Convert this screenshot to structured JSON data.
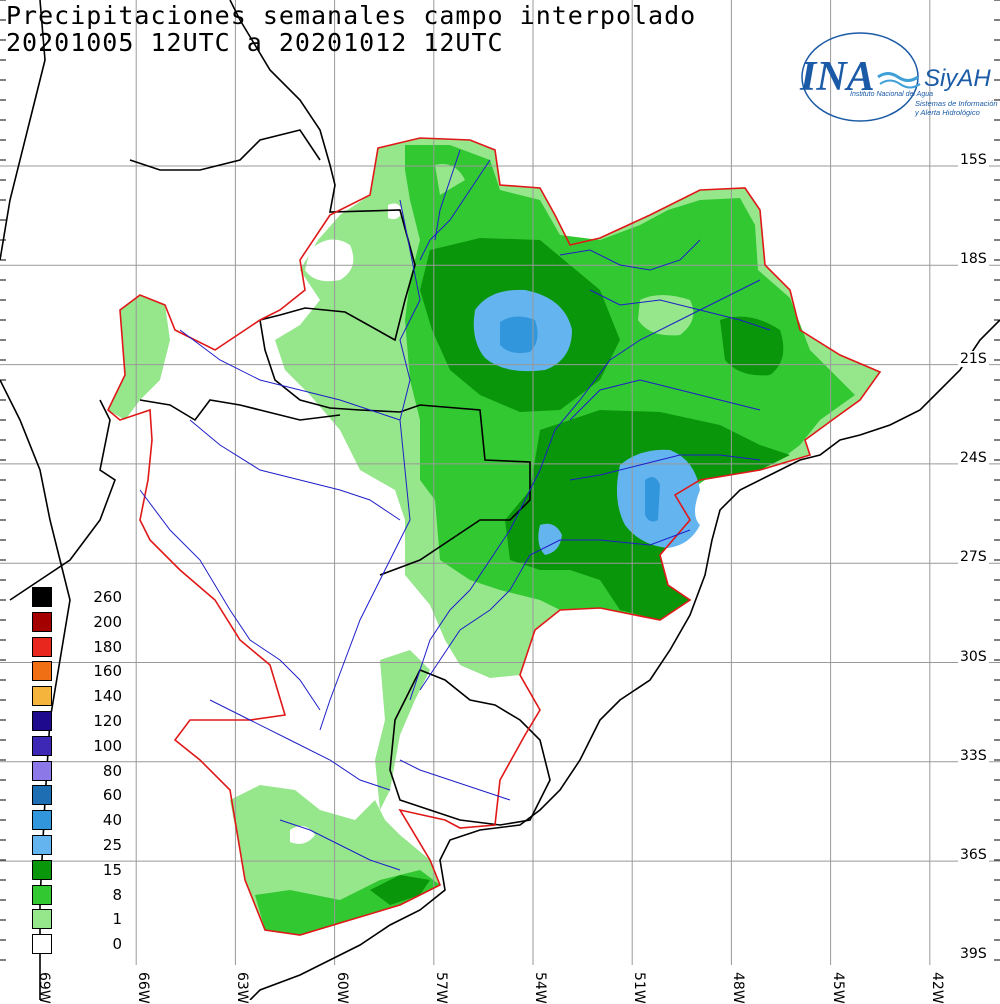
{
  "title": {
    "line1": "Precipitaciones semanales campo interpolado",
    "line2": "20201005 12UTC a 20201012 12UTC"
  },
  "logo": {
    "brand": "INA",
    "product": "SiyAH",
    "tagline1": "Instituto Nacional del Agua",
    "tagline2": "Sistemas de Información",
    "tagline3": "y Alerta Hidrológico",
    "color": "#1a5aa6"
  },
  "legend": [
    {
      "label": "260",
      "color": "#000000"
    },
    {
      "label": "200",
      "color": "#a50000"
    },
    {
      "label": "180",
      "color": "#e8281e"
    },
    {
      "label": "160",
      "color": "#f06e14"
    },
    {
      "label": "140",
      "color": "#f5b43c"
    },
    {
      "label": "120",
      "color": "#1e0a8c"
    },
    {
      "label": "100",
      "color": "#3c28b4"
    },
    {
      "label": "80",
      "color": "#8c78e6"
    },
    {
      "label": "60",
      "color": "#1e6eb4"
    },
    {
      "label": "40",
      "color": "#3296dc"
    },
    {
      "label": "25",
      "color": "#64b4f0"
    },
    {
      "label": "15",
      "color": "#0a960a"
    },
    {
      "label": "8",
      "color": "#32c832"
    },
    {
      "label": "1",
      "color": "#96e68c"
    },
    {
      "label": "0",
      "color": "#ffffff"
    }
  ],
  "latitudes": [
    "15S",
    "18S",
    "21S",
    "24S",
    "27S",
    "30S",
    "33S",
    "36S",
    "39S"
  ],
  "longitudes": [
    "69W",
    "66W",
    "63W",
    "60W",
    "57W",
    "54W",
    "51W",
    "48W",
    "45W",
    "42W"
  ]
}
